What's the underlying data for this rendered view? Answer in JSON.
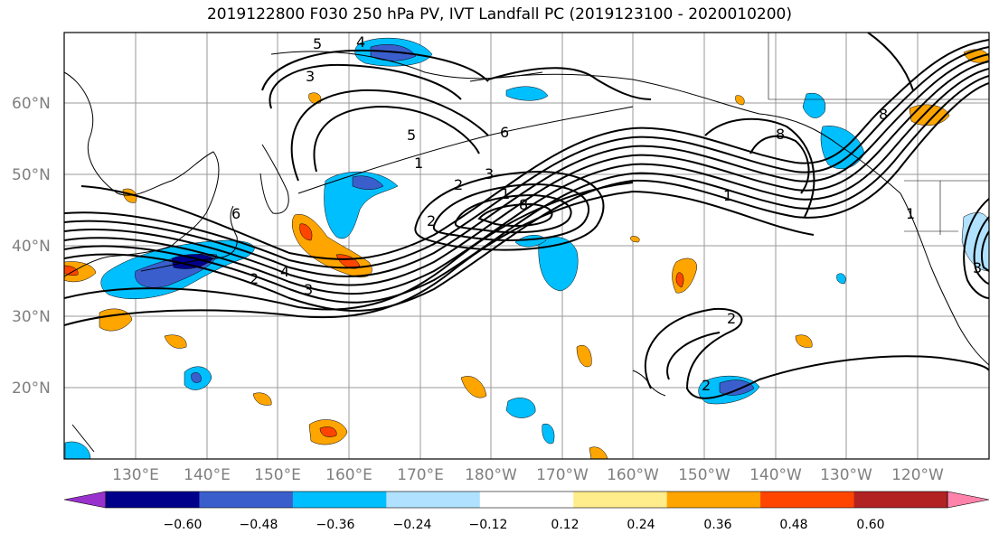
{
  "title": "2019122800 F030 250 hPa PV, IVT Landfall PC (2019123100 - 2020010200)",
  "lat_labels": [
    "60°N",
    "50°N",
    "40°N",
    "30°N",
    "20°N"
  ],
  "lon_labels": [
    "130°E",
    "140°E",
    "150°E",
    "160°E",
    "170°E",
    "180°W",
    "170°W",
    "160°W",
    "150°W",
    "140°W",
    "130°W",
    "120°W"
  ],
  "contour_labels": [
    "5",
    "4",
    "3",
    "5",
    "6",
    "1",
    "2",
    "3",
    "1",
    "2",
    "8",
    "6",
    "2",
    "4",
    "3",
    "1",
    "8",
    "8",
    "2",
    "2",
    "1",
    "3"
  ],
  "colorbar": {
    "ticks": [
      "−0.60",
      "−0.48",
      "−0.36",
      "−0.24",
      "−0.12",
      "0.12",
      "0.24",
      "0.36",
      "0.48",
      "0.60"
    ],
    "colors": [
      "#9932cc",
      "#00008b",
      "#3a5fcd",
      "#00bfff",
      "#b0e2ff",
      "#ffffff",
      "#ffec8b",
      "#ffa500",
      "#ff4500",
      "#b22222",
      "#ff82ab"
    ]
  }
}
